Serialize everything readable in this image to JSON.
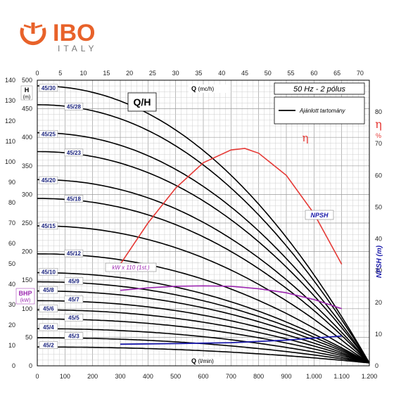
{
  "brand": {
    "name": "IBO",
    "sub": "ITALY",
    "color": "#e8622a",
    "text_color": "#777777"
  },
  "chart_data": {
    "type": "line",
    "title": "Q/H",
    "subtitle": "50 Hz - 2 pólus",
    "legend_text": "Ajánlott tartomány",
    "axes": {
      "left_h": {
        "label": "H",
        "unit": "(m)",
        "range": [
          0,
          500
        ],
        "step": 50,
        "grid_step": 10
      },
      "left_bhp": {
        "label": "BHP",
        "unit": "(kW)",
        "color": "#9c27b0",
        "range": [
          0,
          140
        ],
        "step": 10
      },
      "bottom_q": {
        "label": "Q",
        "unit": "(l/min)",
        "range": [
          0,
          1200
        ],
        "step": 100,
        "grid_step": 20,
        "tick_labels": [
          "0",
          "100",
          "200",
          "300",
          "400",
          "500",
          "600",
          "700",
          "800",
          "900",
          "1.000",
          "1.100",
          "1.200"
        ]
      },
      "top_q": {
        "label": "Q",
        "unit": "(mc/h)",
        "range": [
          0,
          72
        ],
        "step": 5
      },
      "right_eta": {
        "label": "η",
        "unit": "%",
        "color": "#e53935",
        "range": [
          0,
          90
        ],
        "step": 10,
        "visible_from": 0,
        "visible_to": 80
      },
      "right_npsh": {
        "label": "NPSH (m)",
        "color": "#1a1aaa",
        "range": [
          0,
          90
        ],
        "step": 10,
        "visible_to": 30
      }
    },
    "pump_curves": {
      "color": "#000000",
      "q_end": 1200,
      "h_end": 5,
      "models": [
        {
          "name": "45/30",
          "h0": 490
        },
        {
          "name": "45/28",
          "h0": 457
        },
        {
          "name": "45/25",
          "h0": 408
        },
        {
          "name": "45/23",
          "h0": 375
        },
        {
          "name": "45/20",
          "h0": 326
        },
        {
          "name": "45/18",
          "h0": 293
        },
        {
          "name": "45/15",
          "h0": 245
        },
        {
          "name": "45/12",
          "h0": 196
        },
        {
          "name": "45/10",
          "h0": 163
        },
        {
          "name": "45/9",
          "h0": 147
        },
        {
          "name": "45/8",
          "h0": 131
        },
        {
          "name": "45/7",
          "h0": 114
        },
        {
          "name": "45/6",
          "h0": 98
        },
        {
          "name": "45/5",
          "h0": 82
        },
        {
          "name": "45/4",
          "h0": 65
        },
        {
          "name": "45/3",
          "h0": 49
        },
        {
          "name": "45/2",
          "h0": 33
        }
      ]
    },
    "recommended_range": {
      "q_min": 300,
      "q_max": 1100,
      "color": "#000000"
    },
    "efficiency": {
      "name": "η",
      "color": "#e53935",
      "q": [
        300,
        400,
        500,
        600,
        700,
        750,
        800,
        900,
        1000,
        1100
      ],
      "eta": [
        32,
        45,
        56,
        64,
        68,
        68.5,
        67,
        60,
        48,
        32
      ]
    },
    "npsh": {
      "name": "NPSH",
      "color": "#1a1aaa",
      "q": [
        300,
        500,
        700,
        900,
        1100
      ],
      "npsh": [
        6.8,
        7.0,
        7.3,
        8.1,
        9.4
      ]
    },
    "power_1st": {
      "name": "kW x 110 (1st.)",
      "color": "#9c27b0",
      "q": [
        300,
        400,
        500,
        600,
        700,
        800,
        900,
        1000,
        1100
      ],
      "kw": [
        37,
        38.2,
        39,
        39.2,
        39,
        37.8,
        35.8,
        32.5,
        28
      ]
    }
  }
}
